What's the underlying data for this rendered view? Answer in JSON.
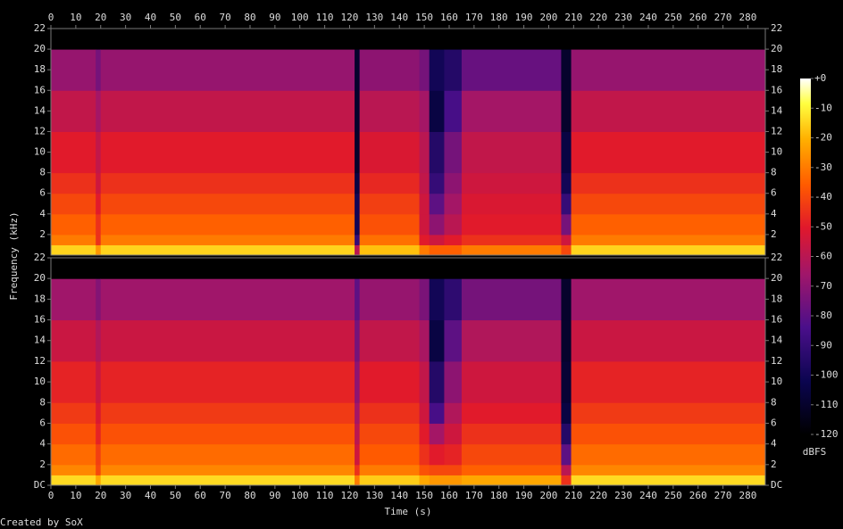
{
  "chart_data": {
    "type": "spectrogram",
    "x_label": "Time (s)",
    "y_label": "Frequency (kHz)",
    "credit": "Created by SoX",
    "xlim": [
      0,
      287
    ],
    "xticks": [
      0,
      10,
      20,
      30,
      40,
      50,
      60,
      70,
      80,
      90,
      100,
      110,
      120,
      130,
      140,
      150,
      160,
      170,
      180,
      190,
      200,
      210,
      220,
      230,
      240,
      250,
      260,
      270,
      280
    ],
    "ylim": [
      0,
      22
    ],
    "xbins": [
      0,
      18,
      20,
      122,
      124,
      148,
      152,
      158,
      165,
      205,
      209,
      287
    ],
    "ybins": [
      0,
      1,
      2,
      4,
      6,
      8,
      12,
      16,
      20,
      22
    ],
    "channels": [
      {
        "yticks": [
          2,
          4,
          6,
          8,
          10,
          12,
          14,
          16,
          18,
          20,
          22
        ],
        "values": [
          [
            -15,
            -30,
            -35,
            -40,
            -45,
            -50,
            -58,
            -68,
            -120
          ],
          [
            -25,
            -45,
            -45,
            -50,
            -55,
            -58,
            -65,
            -75,
            -120
          ],
          [
            -15,
            -30,
            -35,
            -40,
            -45,
            -50,
            -58,
            -68,
            -120
          ],
          [
            -60,
            -90,
            -100,
            -100,
            -105,
            -110,
            -110,
            -110,
            -120
          ],
          [
            -18,
            -32,
            -38,
            -42,
            -47,
            -52,
            -60,
            -70,
            -120
          ],
          [
            -30,
            -50,
            -55,
            -55,
            -58,
            -60,
            -65,
            -75,
            -120
          ],
          [
            -35,
            -55,
            -70,
            -80,
            -90,
            -95,
            -105,
            -100,
            -120
          ],
          [
            -35,
            -50,
            -60,
            -65,
            -70,
            -75,
            -85,
            -95,
            -120
          ],
          [
            -30,
            -45,
            -50,
            -52,
            -55,
            -58,
            -65,
            -78,
            -120
          ],
          [
            -40,
            -55,
            -75,
            -90,
            -100,
            -105,
            -110,
            -110,
            -120
          ],
          [
            -15,
            -30,
            -35,
            -40,
            -45,
            -50,
            -58,
            -68,
            -120
          ]
        ]
      },
      {
        "yticks": [
          {
            "value": 0,
            "label": "DC"
          },
          2,
          4,
          6,
          8,
          10,
          12,
          14,
          16,
          18,
          20,
          22
        ],
        "values": [
          [
            -14,
            -28,
            -33,
            -38,
            -43,
            -48,
            -56,
            -66,
            -120
          ],
          [
            -22,
            -40,
            -42,
            -48,
            -52,
            -56,
            -62,
            -72,
            -120
          ],
          [
            -14,
            -28,
            -33,
            -38,
            -43,
            -48,
            -56,
            -66,
            -120
          ],
          [
            -30,
            -45,
            -55,
            -60,
            -65,
            -70,
            -75,
            -80,
            -120
          ],
          [
            -16,
            -30,
            -36,
            -40,
            -45,
            -50,
            -58,
            -68,
            -120
          ],
          [
            -22,
            -38,
            -45,
            -50,
            -55,
            -58,
            -64,
            -74,
            -120
          ],
          [
            -25,
            -40,
            -50,
            -65,
            -85,
            -95,
            -105,
            -100,
            -120
          ],
          [
            -25,
            -40,
            -48,
            -55,
            -62,
            -70,
            -80,
            -92,
            -120
          ],
          [
            -22,
            -35,
            -40,
            -45,
            -50,
            -55,
            -62,
            -75,
            -120
          ],
          [
            -45,
            -60,
            -80,
            -95,
            -105,
            -108,
            -110,
            -110,
            -120
          ],
          [
            -14,
            -28,
            -33,
            -38,
            -43,
            -48,
            -56,
            -66,
            -120
          ]
        ]
      }
    ],
    "colorbar": {
      "label": "dBFS",
      "lim": [
        -120,
        0
      ],
      "ticks": [
        {
          "value": 0,
          "label": "+0"
        },
        -10,
        -20,
        -30,
        -40,
        -50,
        -60,
        -70,
        -80,
        -90,
        -100,
        -110,
        -120
      ]
    }
  }
}
